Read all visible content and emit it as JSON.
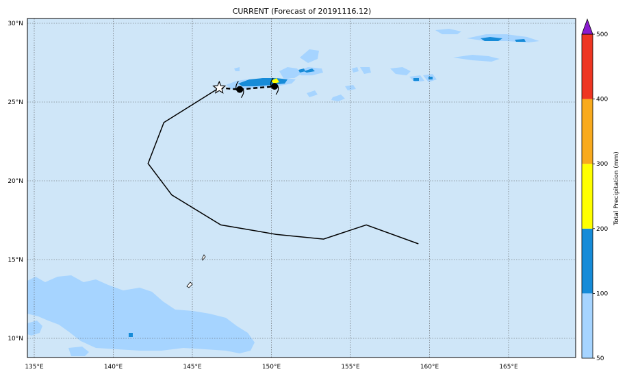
{
  "title": "CURRENT (Forecast of 20191116.12)",
  "colorbar": {
    "label": "Total Precipitation (mm)",
    "ticks": [
      "50",
      "100",
      "200",
      "300",
      "400",
      "500"
    ],
    "colors": [
      "#a6d4ff",
      "#168bd8",
      "#ffff00",
      "#f8aa1e",
      "#ee3522"
    ],
    "extend_color": "#8a1bcf"
  },
  "map": {
    "ocean_color": "#cfe6f8",
    "land_rain_color": "#a6d4ff",
    "heavy_rain_color": "#168bd8",
    "lon_labels": [
      "135°E",
      "140°E",
      "145°E",
      "150°E",
      "155°E",
      "160°E",
      "165°E"
    ],
    "lat_labels": [
      "30°N",
      "25°N",
      "20°N",
      "15°N",
      "10°N"
    ]
  },
  "track": {
    "past_path_lonlat": [
      [
        159.3,
        16.0
      ],
      [
        156.0,
        17.2
      ],
      [
        153.3,
        16.3
      ],
      [
        150.3,
        16.6
      ],
      [
        146.8,
        17.2
      ],
      [
        143.7,
        19.1
      ],
      [
        142.2,
        21.1
      ],
      [
        143.2,
        23.7
      ],
      [
        146.7,
        25.9
      ]
    ],
    "current_position_lonlat": [
      146.7,
      25.9
    ],
    "forecast_path_lonlat": [
      [
        146.7,
        25.9
      ],
      [
        148.0,
        25.8
      ],
      [
        150.2,
        26.0
      ]
    ]
  }
}
